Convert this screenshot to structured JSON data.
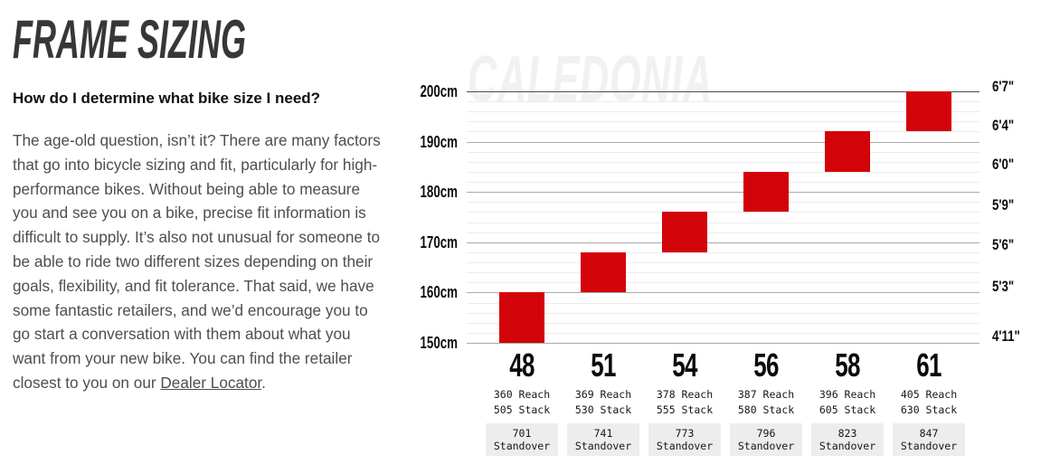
{
  "header": {
    "title": "FRAME SIZING",
    "question": "How do I determine what bike size I need?"
  },
  "body": {
    "text_before_link": "The age-old question, isn’t it? There are many factors that go into bicycle sizing and fit, particularly for high-performance bikes. Without being able to measure you and see you on a bike, precise fit information is difficult to supply. It’s also not unusual for someone to be able to ride two different sizes depending on their goals, flexibility, and fit tolerance. That said, we have some fantastic retailers, and we’d encourage you to go start a conversation with them about what you want from your new bike. You can find the retailer closest to you on our ",
    "link_text": "Dealer Locator",
    "text_after_link": "."
  },
  "chart_data": {
    "type": "bar",
    "subtype": "floating-range-bars",
    "watermark": "CALEDONIA",
    "ylim_cm": [
      150,
      200
    ],
    "gridlines": {
      "major_step_cm": 10,
      "minor_step_cm": 2,
      "grid_on": true
    },
    "y_axis_left": {
      "unit": "cm",
      "ticks": [
        "200cm",
        "190cm",
        "180cm",
        "170cm",
        "160cm",
        "150cm"
      ]
    },
    "y_axis_right": {
      "unit": "feet-inches",
      "ticks": [
        "6'7\"",
        "6'4\"",
        "6'0\"",
        "5'9\"",
        "5'6\"",
        "5'3\"",
        "4'11\""
      ]
    },
    "bar_color": "#d20309",
    "standover_box_color": "#ededed",
    "labels": {
      "reach_suffix": "Reach",
      "stack_suffix": "Stack",
      "standover_suffix": "Standover"
    },
    "sizes": [
      {
        "size": "48",
        "rider_height_min_cm": 150,
        "rider_height_max_cm": 160,
        "reach_mm": 360,
        "stack_mm": 505,
        "standover_mm": 701
      },
      {
        "size": "51",
        "rider_height_min_cm": 160,
        "rider_height_max_cm": 168,
        "reach_mm": 369,
        "stack_mm": 530,
        "standover_mm": 741
      },
      {
        "size": "54",
        "rider_height_min_cm": 168,
        "rider_height_max_cm": 176,
        "reach_mm": 378,
        "stack_mm": 555,
        "standover_mm": 773
      },
      {
        "size": "56",
        "rider_height_min_cm": 176,
        "rider_height_max_cm": 184,
        "reach_mm": 387,
        "stack_mm": 580,
        "standover_mm": 796
      },
      {
        "size": "58",
        "rider_height_min_cm": 184,
        "rider_height_max_cm": 192,
        "reach_mm": 396,
        "stack_mm": 605,
        "standover_mm": 823
      },
      {
        "size": "61",
        "rider_height_min_cm": 192,
        "rider_height_max_cm": 200,
        "reach_mm": 405,
        "stack_mm": 630,
        "standover_mm": 847
      }
    ]
  }
}
